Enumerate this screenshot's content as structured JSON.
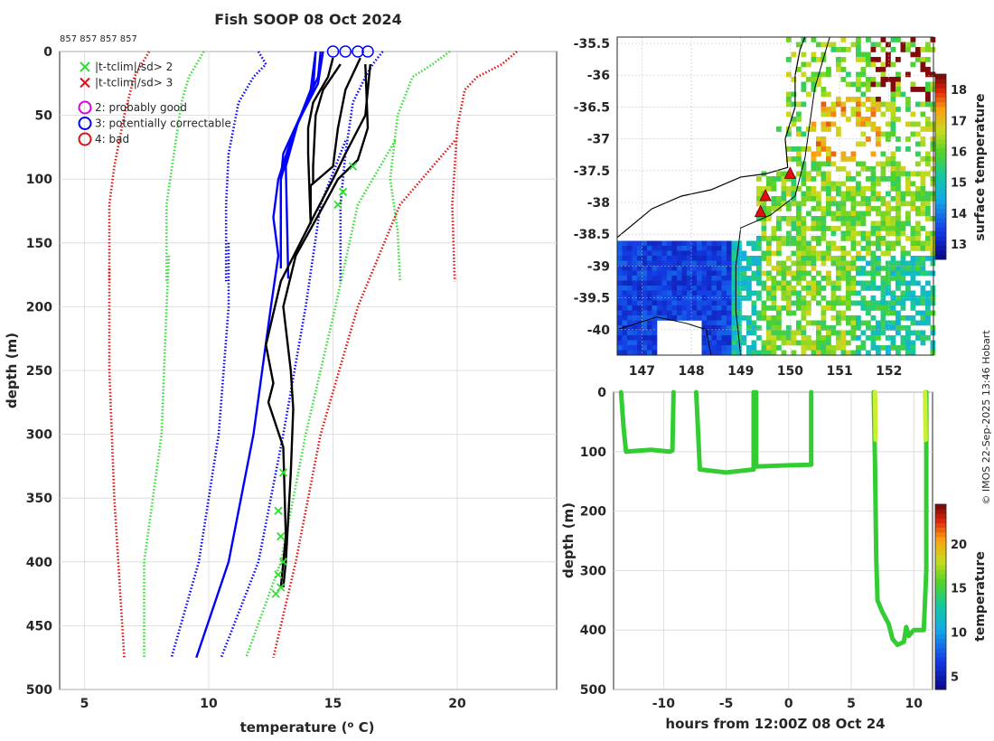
{
  "title": "Fish SOOP 08 Oct 2024",
  "copyright": "© IMOS 22-Sep-2025 13:46 Hobart",
  "colors": {
    "black": "#000000",
    "blue": "#0000ff",
    "green": "#33dd33",
    "red": "#dd1111",
    "magenta": "#dd00dd",
    "track": "#33cc33",
    "track_top": "#ccee33"
  },
  "chart_data": [
    {
      "id": "profile",
      "type": "line",
      "xlabel": "temperature (",
      "xlabel_sup": "o",
      "xlabel_end": " C)",
      "ylabel": "depth (m)",
      "xlim": [
        4,
        24
      ],
      "ylim": [
        500,
        0
      ],
      "xticks": [
        5,
        10,
        15,
        20
      ],
      "yticks": [
        0,
        50,
        100,
        150,
        200,
        250,
        300,
        350,
        400,
        450,
        500
      ],
      "top_ids": "857 857 857 857",
      "grid": true,
      "legend": [
        {
          "marker": "x",
          "color": "#33dd33",
          "label": "|t-tclim|/sd> 2"
        },
        {
          "marker": "x",
          "color": "#dd1111",
          "label": "|t-tclim|/sd> 3"
        },
        {
          "marker": "o",
          "color": "#dd00dd",
          "label": "2: probably good"
        },
        {
          "marker": "o",
          "color": "#0000ff",
          "label": "3: potentially correctable"
        },
        {
          "marker": "o",
          "color": "#dd1111",
          "label": "4: bad"
        }
      ],
      "series": [
        {
          "name": "clim +3sd (shallow)",
          "style": "dotted",
          "color": "#dd1111",
          "points": [
            [
              22.4,
              0
            ],
            [
              21.8,
              10
            ],
            [
              20.8,
              20
            ],
            [
              20.3,
              30
            ],
            [
              20.0,
              60
            ],
            [
              19.8,
              120
            ],
            [
              19.9,
              180
            ]
          ]
        },
        {
          "name": "clim +2sd (shallow)",
          "style": "dotted",
          "color": "#33dd33",
          "points": [
            [
              19.7,
              0
            ],
            [
              19.0,
              10
            ],
            [
              18.2,
              20
            ],
            [
              17.6,
              50
            ],
            [
              17.3,
              100
            ],
            [
              17.6,
              140
            ],
            [
              17.7,
              180
            ]
          ]
        },
        {
          "name": "clim +1sd (shallow)",
          "style": "dotted",
          "color": "#0000ff",
          "points": [
            [
              17.0,
              0
            ],
            [
              16.6,
              10
            ],
            [
              16.3,
              20
            ],
            [
              15.8,
              40
            ],
            [
              15.5,
              80
            ],
            [
              15.3,
              120
            ],
            [
              15.3,
              180
            ]
          ]
        },
        {
          "name": "clim -1sd (shallow)",
          "style": "dotted",
          "color": "#0000ff",
          "points": [
            [
              12.0,
              0
            ],
            [
              12.3,
              10
            ],
            [
              11.8,
              20
            ],
            [
              11.2,
              40
            ],
            [
              10.8,
              80
            ],
            [
              10.7,
              120
            ],
            [
              10.7,
              180
            ]
          ]
        },
        {
          "name": "clim -2sd (shallow)",
          "style": "dotted",
          "color": "#33dd33",
          "points": [
            [
              9.8,
              0
            ],
            [
              9.5,
              10
            ],
            [
              9.2,
              20
            ],
            [
              8.9,
              40
            ],
            [
              8.6,
              80
            ],
            [
              8.3,
              120
            ],
            [
              8.3,
              180
            ]
          ]
        },
        {
          "name": "clim -3sd (shallow)",
          "style": "dotted",
          "color": "#dd1111",
          "points": [
            [
              7.6,
              0
            ],
            [
              7.3,
              10
            ],
            [
              7.0,
              20
            ],
            [
              6.6,
              50
            ],
            [
              6.2,
              90
            ],
            [
              6.0,
              120
            ],
            [
              6.0,
              180
            ]
          ]
        },
        {
          "name": "clim +3sd (deep)",
          "style": "dotted",
          "color": "#dd1111",
          "points": [
            [
              19.9,
              70
            ],
            [
              17.7,
              120
            ],
            [
              16.0,
              200
            ],
            [
              14.5,
              300
            ],
            [
              13.5,
              400
            ],
            [
              12.6,
              475
            ]
          ]
        },
        {
          "name": "clim +2sd (deep)",
          "style": "dotted",
          "color": "#33dd33",
          "points": [
            [
              17.5,
              70
            ],
            [
              16.0,
              120
            ],
            [
              15.1,
              200
            ],
            [
              13.9,
              300
            ],
            [
              12.9,
              400
            ],
            [
              11.5,
              475
            ]
          ]
        },
        {
          "name": "clim +1sd (deep)",
          "style": "dotted",
          "color": "#0000ff",
          "points": [
            [
              15.5,
              70
            ],
            [
              14.5,
              120
            ],
            [
              13.9,
              200
            ],
            [
              13.0,
              300
            ],
            [
              12.0,
              400
            ],
            [
              10.5,
              475
            ]
          ]
        },
        {
          "name": "clim -1sd (deep)",
          "style": "dotted",
          "color": "#0000ff",
          "points": [
            [
              10.8,
              150
            ],
            [
              10.8,
              200
            ],
            [
              10.4,
              300
            ],
            [
              9.6,
              400
            ],
            [
              8.5,
              475
            ]
          ]
        },
        {
          "name": "clim -2sd (deep)",
          "style": "dotted",
          "color": "#33dd33",
          "points": [
            [
              8.4,
              160
            ],
            [
              8.3,
              200
            ],
            [
              8.1,
              300
            ],
            [
              7.4,
              400
            ],
            [
              7.4,
              475
            ]
          ]
        },
        {
          "name": "clim -3sd (deep)",
          "style": "dotted",
          "color": "#dd1111",
          "points": [
            [
              6.0,
              170
            ],
            [
              6.0,
              250
            ],
            [
              6.2,
              350
            ],
            [
              6.6,
              475
            ]
          ]
        },
        {
          "name": "mean -1 (solid)",
          "style": "solid",
          "color": "#0000ff",
          "points": [
            [
              14.3,
              0
            ],
            [
              14.1,
              30
            ],
            [
              13.3,
              70
            ],
            [
              12.8,
              100
            ],
            [
              12.6,
              130
            ],
            [
              12.8,
              160
            ],
            [
              12.5,
              200
            ],
            [
              11.8,
              300
            ],
            [
              10.8,
              400
            ],
            [
              9.5,
              475
            ]
          ]
        },
        {
          "name": "profile blue 1",
          "style": "solid",
          "color": "#0000ff",
          "points": [
            [
              14.5,
              0
            ],
            [
              14.4,
              20
            ],
            [
              13.7,
              50
            ],
            [
              13.0,
              80
            ],
            [
              12.9,
              100
            ],
            [
              12.9,
              170
            ]
          ]
        },
        {
          "name": "profile blue 2",
          "style": "solid",
          "color": "#0000ff",
          "points": [
            [
              14.3,
              0
            ],
            [
              14.2,
              30
            ],
            [
              13.5,
              60
            ],
            [
              12.9,
              100
            ],
            [
              12.9,
              165
            ]
          ]
        },
        {
          "name": "profile blue 3",
          "style": "solid",
          "color": "#0000ff",
          "points": [
            [
              14.6,
              0
            ],
            [
              14.4,
              25
            ],
            [
              13.6,
              55
            ],
            [
              13.1,
              90
            ],
            [
              13.2,
              178
            ]
          ]
        },
        {
          "name": "profile black 1",
          "style": "solid",
          "color": "#000000",
          "points": [
            [
              15.0,
              5
            ],
            [
              14.8,
              20
            ],
            [
              14.2,
              40
            ],
            [
              14.0,
              60
            ],
            [
              14.0,
              80
            ],
            [
              14.1,
              135
            ]
          ]
        },
        {
          "name": "profile black 2",
          "style": "solid",
          "color": "#000000",
          "points": [
            [
              15.3,
              10
            ],
            [
              14.6,
              30
            ],
            [
              14.3,
              50
            ],
            [
              14.2,
              90
            ],
            [
              14.2,
              103
            ]
          ]
        },
        {
          "name": "profile black 3",
          "style": "solid",
          "color": "#000000",
          "points": [
            [
              16.1,
              5
            ],
            [
              15.5,
              30
            ],
            [
              15.2,
              60
            ],
            [
              15.0,
              90
            ],
            [
              14.1,
              105
            ],
            [
              14.1,
              135
            ]
          ]
        },
        {
          "name": "profile black deep",
          "style": "solid",
          "color": "#000000",
          "points": [
            [
              16.3,
              10
            ],
            [
              16.4,
              60
            ],
            [
              16.0,
              85
            ],
            [
              15.2,
              100
            ],
            [
              14.5,
              125
            ],
            [
              13.5,
              160
            ],
            [
              13.0,
              200
            ],
            [
              13.3,
              250
            ],
            [
              13.4,
              280
            ],
            [
              13.3,
              330
            ],
            [
              13.1,
              400
            ],
            [
              13.0,
              420
            ]
          ]
        },
        {
          "name": "profile black deep 2",
          "style": "solid",
          "color": "#000000",
          "points": [
            [
              16.5,
              10
            ],
            [
              16.3,
              50
            ],
            [
              15.5,
              80
            ],
            [
              15.0,
              100
            ],
            [
              14.2,
              130
            ],
            [
              12.9,
              180
            ],
            [
              12.3,
              230
            ],
            [
              12.6,
              260
            ],
            [
              12.4,
              275
            ],
            [
              13.0,
              310
            ],
            [
              13.1,
              380
            ],
            [
              12.9,
              420
            ]
          ]
        }
      ],
      "flags": {
        "green_x": [
          [
            15.8,
            90
          ],
          [
            15.4,
            110
          ],
          [
            15.2,
            120
          ],
          [
            13.0,
            330
          ],
          [
            12.8,
            360
          ],
          [
            12.9,
            380
          ],
          [
            13.0,
            400
          ],
          [
            12.8,
            410
          ],
          [
            12.9,
            420
          ],
          [
            12.7,
            425
          ]
        ],
        "blue_o_at_surface": [
          15.0,
          15.5,
          16.0,
          16.4
        ]
      }
    },
    {
      "id": "map",
      "type": "heatmap",
      "xlim": [
        146.5,
        152.9
      ],
      "ylim": [
        -40.4,
        -35.4
      ],
      "xticks": [
        "147",
        "148",
        "149",
        "150",
        "151",
        "152"
      ],
      "yticks": [
        "-35.5",
        "-36",
        "-36.5",
        "-37",
        "-37.5",
        "-38",
        "-38.5",
        "-39",
        "-39.5",
        "-40"
      ],
      "colorbar_label": "surface temperature",
      "colorbar_ticks": [
        "13",
        "14",
        "15",
        "16",
        "17",
        "18"
      ],
      "colorbar_range": [
        12.5,
        18.5
      ],
      "drops": [
        [
          149.4,
          -38.15
        ],
        [
          149.5,
          -37.9
        ],
        [
          150.0,
          -37.55
        ]
      ]
    },
    {
      "id": "track",
      "type": "scatter",
      "xlabel": "hours from 12:00Z 08 Oct 24",
      "ylabel": "depth (m)",
      "xlim": [
        -14,
        11.5
      ],
      "ylim": [
        500,
        0
      ],
      "xticks": [
        "-10",
        "-5",
        "0",
        "5",
        "10"
      ],
      "yticks": [
        "0",
        "100",
        "200",
        "300",
        "400",
        "500"
      ],
      "colorbar_label": "temperature",
      "colorbar_ticks": [
        "5",
        "10",
        "15",
        "20"
      ],
      "colorbar_range": [
        3.5,
        24.5
      ],
      "segments": [
        [
          [
            -13.4,
            0
          ],
          [
            -13.2,
            60
          ],
          [
            -13.0,
            100
          ],
          [
            -11.0,
            97
          ],
          [
            -9.5,
            100
          ],
          [
            -9.3,
            98
          ],
          [
            -9.2,
            0
          ]
        ],
        [
          [
            -7.4,
            0
          ],
          [
            -7.3,
            40
          ],
          [
            -7.1,
            130
          ],
          [
            -5.0,
            135
          ],
          [
            -2.8,
            130
          ],
          [
            -2.8,
            0
          ]
        ],
        [
          [
            -2.6,
            0
          ],
          [
            -2.6,
            125
          ],
          [
            0.0,
            123
          ],
          [
            1.8,
            122
          ],
          [
            1.8,
            0
          ]
        ],
        [
          [
            6.8,
            0
          ],
          [
            6.9,
            120
          ],
          [
            7.0,
            280
          ],
          [
            7.1,
            350
          ],
          [
            7.5,
            370
          ],
          [
            8.0,
            390
          ],
          [
            8.3,
            415
          ],
          [
            8.7,
            425
          ],
          [
            9.2,
            420
          ],
          [
            9.4,
            395
          ],
          [
            9.6,
            410
          ],
          [
            10.0,
            400
          ],
          [
            10.8,
            400
          ],
          [
            11.0,
            300
          ],
          [
            11.0,
            120
          ],
          [
            11.0,
            0
          ]
        ]
      ]
    }
  ]
}
